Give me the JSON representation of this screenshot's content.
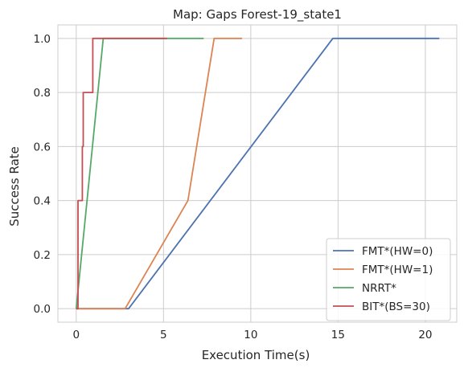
{
  "chart_data": {
    "type": "line",
    "title": "Map: Gaps Forest-19_state1",
    "xlabel": "Execution Time(s)",
    "ylabel": "Success Rate",
    "xlim": [
      -1.05,
      21.8
    ],
    "ylim": [
      -0.05,
      1.05
    ],
    "xticks": [
      0,
      5,
      10,
      15,
      20
    ],
    "xtick_labels": [
      "0",
      "5",
      "10",
      "15",
      "20"
    ],
    "yticks": [
      0.0,
      0.2,
      0.4,
      0.6,
      0.8,
      1.0
    ],
    "ytick_labels": [
      "0.0",
      "0.2",
      "0.4",
      "0.6",
      "0.8",
      "1.0"
    ],
    "grid": true,
    "legend_position": "lower-right",
    "series": [
      {
        "name": "FMT*(HW=0)",
        "color": "#4c72b0",
        "points": [
          [
            0.0,
            0.0
          ],
          [
            2.8,
            0.0
          ],
          [
            3.0,
            0.0
          ],
          [
            14.7,
            1.0
          ],
          [
            20.8,
            1.0
          ]
        ]
      },
      {
        "name": "FMT*(HW=1)",
        "color": "#dd8452",
        "points": [
          [
            0.0,
            0.0
          ],
          [
            2.8,
            0.0
          ],
          [
            6.4,
            0.4
          ],
          [
            7.9,
            1.0
          ],
          [
            9.5,
            1.0
          ]
        ]
      },
      {
        "name": "NRRT*",
        "color": "#55a868",
        "points": [
          [
            0.0,
            0.0
          ],
          [
            1.55,
            1.0
          ],
          [
            7.3,
            1.0
          ]
        ]
      },
      {
        "name": "BIT*(BS=30)",
        "color": "#c44e52",
        "points": [
          [
            0.0,
            0.0
          ],
          [
            0.1,
            0.0
          ],
          [
            0.1,
            0.4
          ],
          [
            0.35,
            0.4
          ],
          [
            0.35,
            0.6
          ],
          [
            0.4,
            0.6
          ],
          [
            0.4,
            0.8
          ],
          [
            0.95,
            0.8
          ],
          [
            0.95,
            1.0
          ],
          [
            5.2,
            1.0
          ]
        ]
      }
    ]
  }
}
